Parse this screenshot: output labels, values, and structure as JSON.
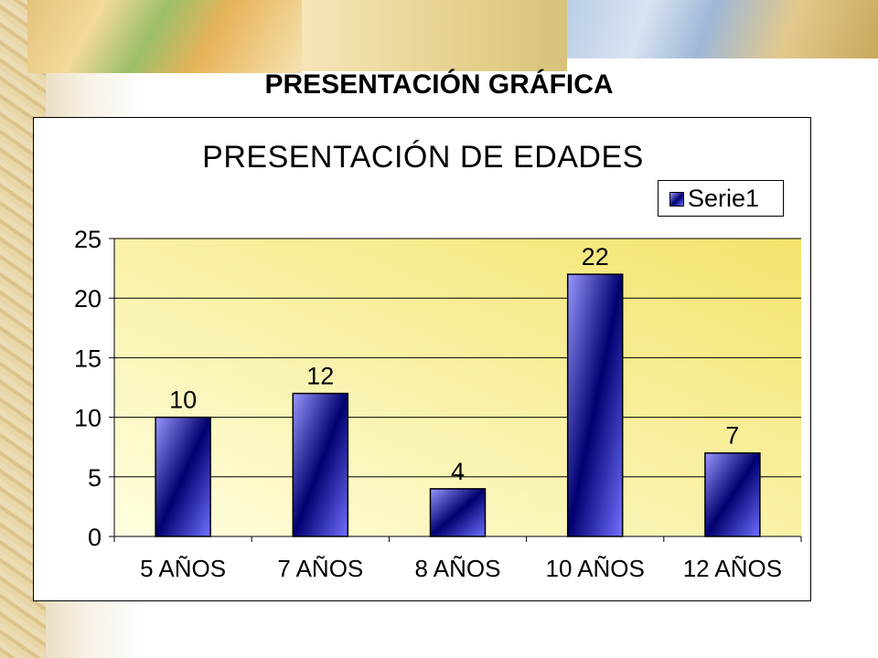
{
  "slide": {
    "heading": "PRESENTACIÓN GRÁFICA"
  },
  "chart_data": {
    "type": "bar",
    "title": "PRESENTACIÓN DE EDADES",
    "categories": [
      "5 AÑOS",
      "7 AÑOS",
      "8 AÑOS",
      "10 AÑOS",
      "12 AÑOS"
    ],
    "series": [
      {
        "name": "Serie1",
        "values": [
          10,
          12,
          4,
          22,
          7
        ]
      }
    ],
    "data_labels": [
      "10",
      "12",
      "4",
      "22",
      "7"
    ],
    "ylim": [
      0,
      25
    ],
    "yticks": [
      "0",
      "5",
      "10",
      "15",
      "20",
      "25"
    ],
    "xlabel": "",
    "ylabel": "",
    "grid": true,
    "legend_position": "top-right",
    "colors": {
      "bar_light": "#9898ff",
      "bar_dark": "#000070",
      "plot_bg_light": "#ffffe0",
      "plot_bg_dark": "#f3e36c",
      "gridline": "#000000"
    }
  }
}
